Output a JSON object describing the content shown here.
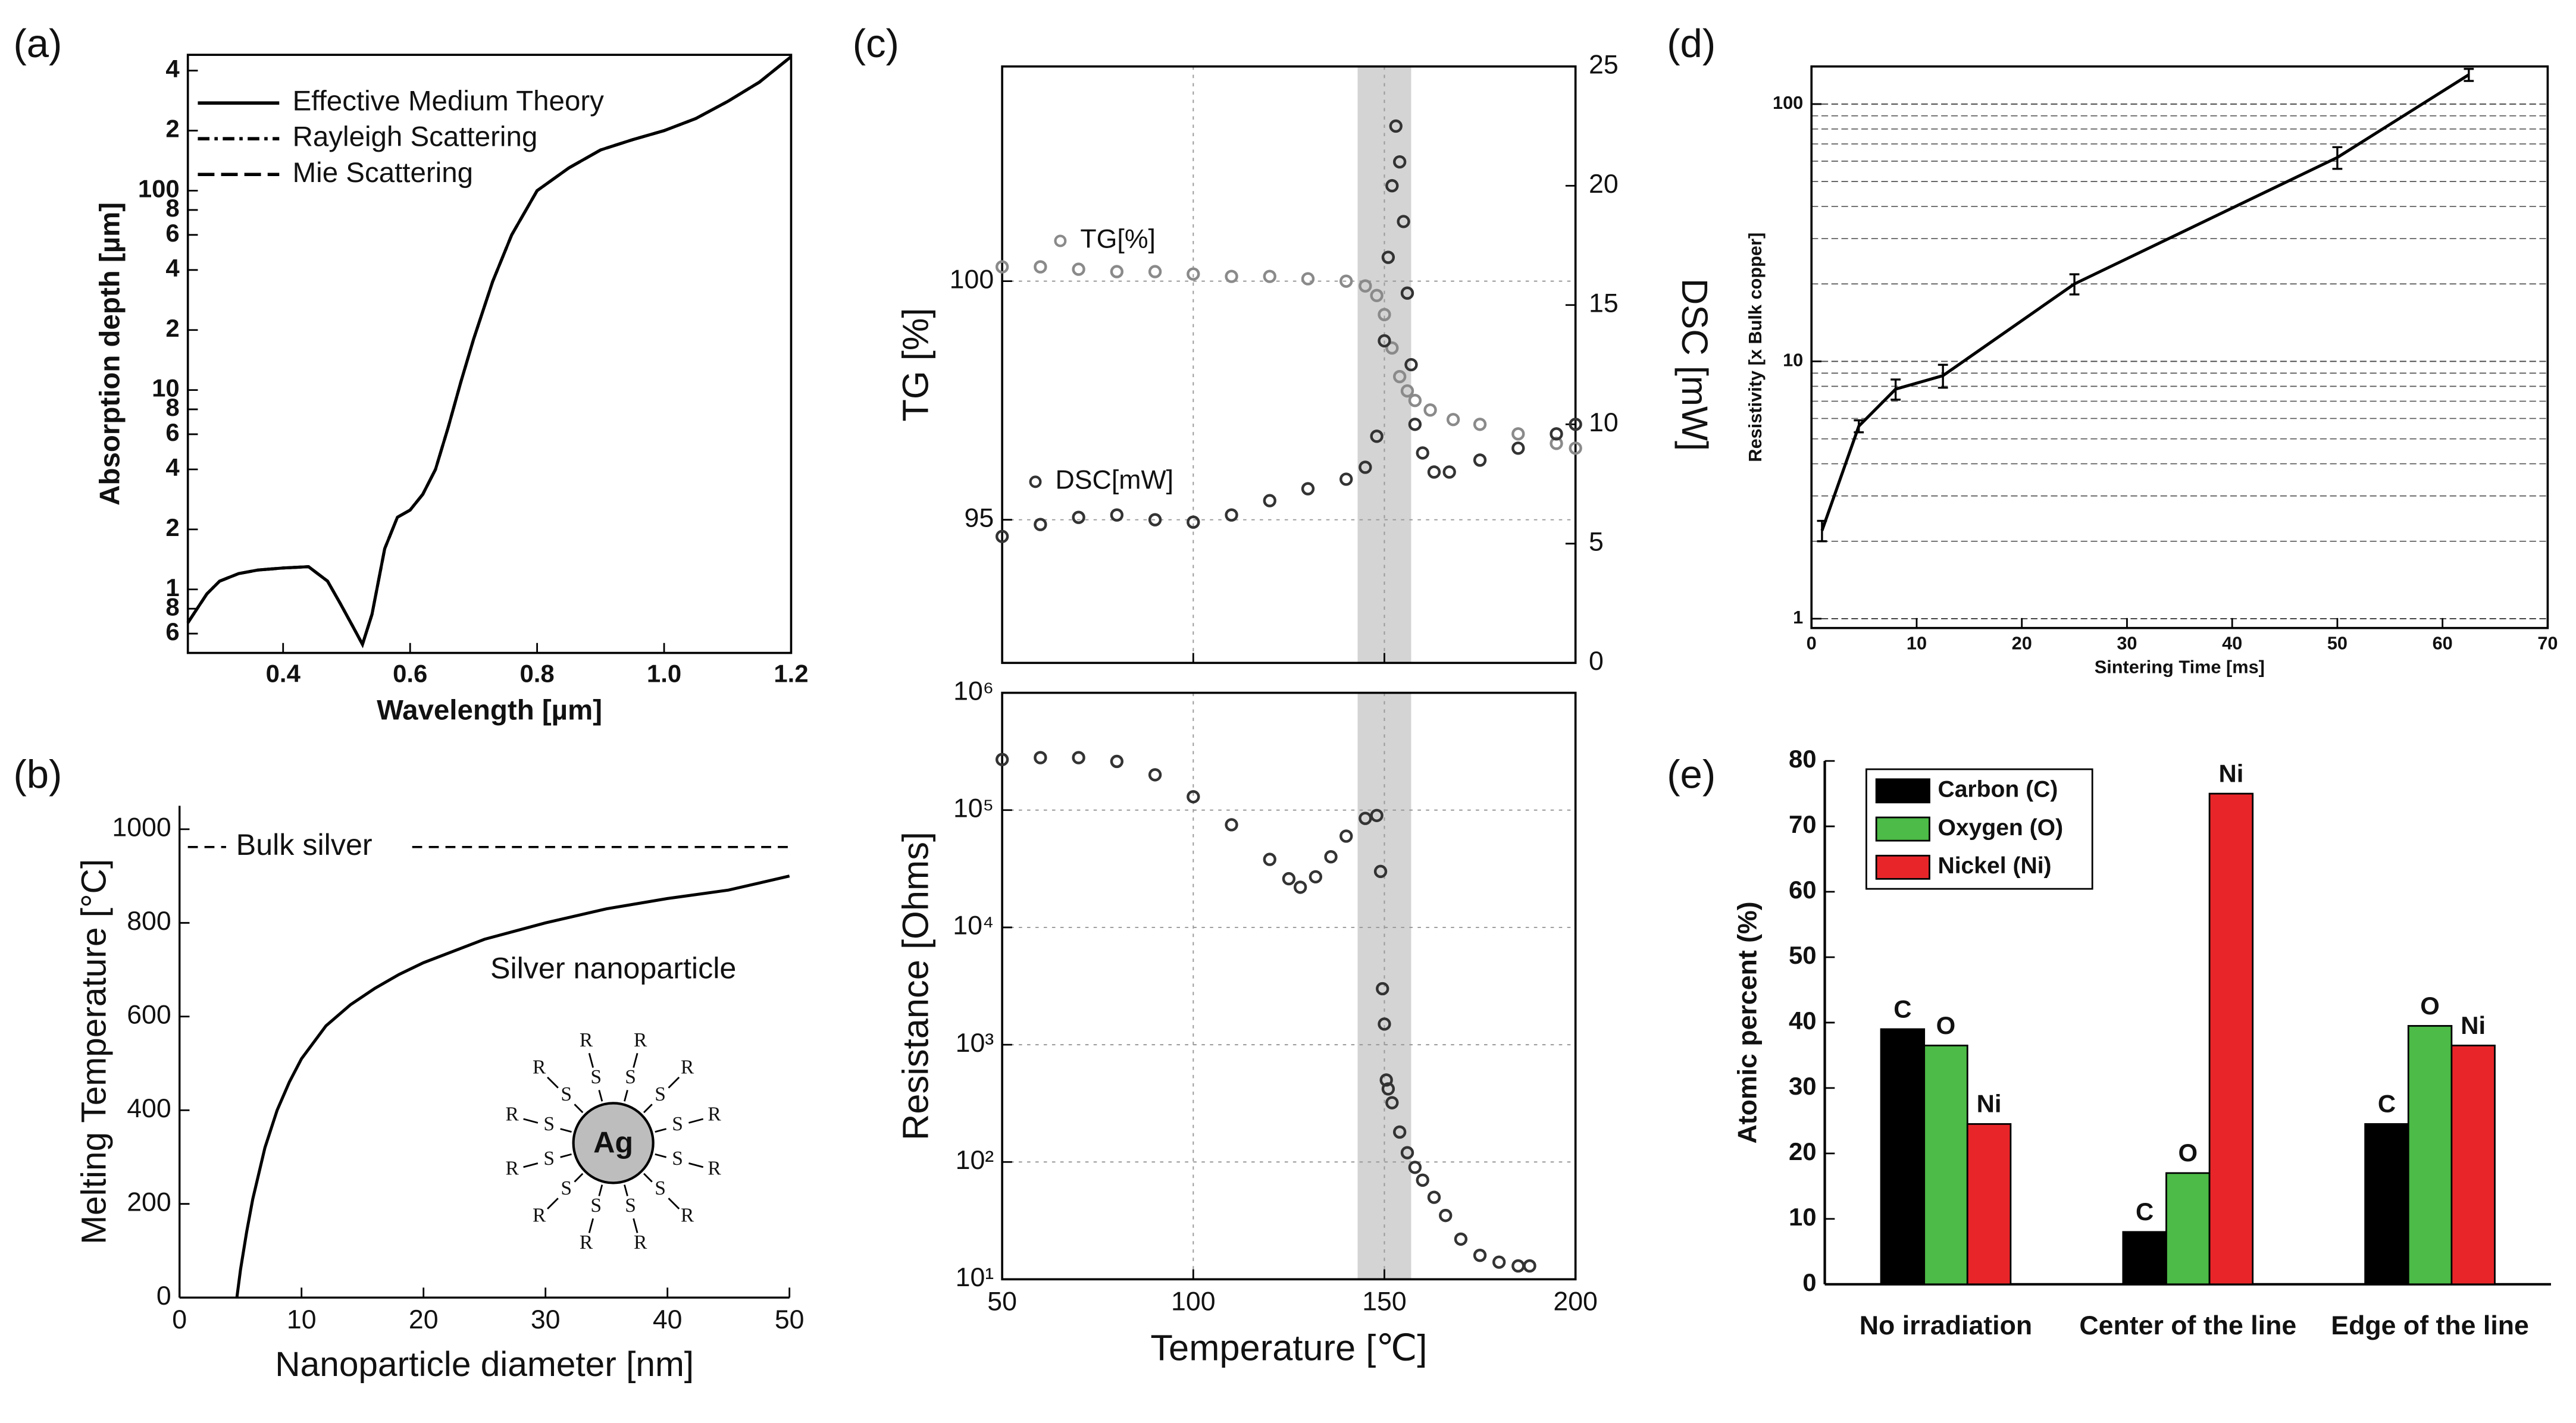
{
  "chart_data": [
    {
      "panel_label": "(a)",
      "type": "line",
      "xlabel": "Wavelength [µm]",
      "ylabel": "Absorption depth [µm]",
      "ylog": true,
      "legend": "upper left",
      "x": [
        0.25,
        0.28,
        0.3,
        0.33,
        0.36,
        0.4,
        0.44,
        0.47,
        0.49,
        0.51,
        0.525,
        0.54,
        0.56,
        0.58,
        0.6,
        0.62,
        0.64,
        0.66,
        0.68,
        0.7,
        0.73,
        0.76,
        0.8,
        0.85,
        0.9,
        0.95,
        1.0,
        1.05,
        1.1,
        1.15,
        1.2
      ],
      "series": [
        {
          "name": "Effective Medium Theory",
          "color": "#000000",
          "linestyle": "solid",
          "values": [
            0.68,
            0.95,
            1.1,
            1.2,
            1.25,
            1.28,
            1.3,
            1.1,
            0.85,
            0.65,
            0.53,
            0.75,
            1.6,
            2.3,
            2.5,
            3.0,
            4.0,
            6.5,
            11,
            18,
            35,
            60,
            100,
            130,
            160,
            180,
            200,
            230,
            280,
            350,
            470
          ]
        },
        {
          "name": "Rayleigh Scattering",
          "color": "#000000",
          "linestyle": "dashdot",
          "values": [
            0.68,
            0.95,
            1.1,
            1.2,
            1.25,
            1.28,
            1.3,
            1.1,
            0.85,
            0.65,
            0.53,
            0.75,
            1.6,
            2.3,
            2.5,
            3.0,
            4.0,
            6.5,
            11,
            18,
            35,
            60,
            100,
            130,
            160,
            180,
            200,
            230,
            280,
            350,
            470
          ]
        },
        {
          "name": "Mie Scattering",
          "color": "#000000",
          "linestyle": "dashed",
          "values": [
            0.68,
            0.95,
            1.1,
            1.2,
            1.25,
            1.28,
            1.3,
            1.1,
            0.85,
            0.65,
            0.53,
            0.75,
            1.6,
            2.3,
            2.5,
            3.0,
            4.0,
            6.5,
            11,
            18,
            35,
            60,
            100,
            130,
            160,
            180,
            200,
            230,
            280,
            350,
            470
          ]
        }
      ],
      "xlim": [
        0.25,
        1.2
      ],
      "xticks": [
        0.4,
        0.6,
        0.8,
        {
          "value": 1,
          "label": "1.0"
        },
        1.2
      ],
      "ylim": [
        0.48,
        480
      ],
      "yticks": [
        {
          "value": 0.6,
          "label": "6"
        },
        {
          "value": 0.8,
          "label": "8"
        },
        1,
        2,
        4,
        6,
        8,
        10,
        {
          "value": 20,
          "label": "2"
        },
        {
          "value": 40,
          "label": "4"
        },
        {
          "value": 60,
          "label": "6"
        },
        {
          "value": 80,
          "label": "8"
        },
        100,
        {
          "value": 200,
          "label": "2"
        },
        {
          "value": 400,
          "label": "4"
        }
      ]
    },
    {
      "panel_label": "(b)",
      "type": "line",
      "xlabel": "Nanoparticle diameter [nm]",
      "ylabel": "Melting Temperature [°C]",
      "color": "#000000",
      "x": [
        4.7,
        5,
        5.5,
        6,
        7,
        8,
        9,
        10,
        12,
        14,
        16,
        18,
        20,
        25,
        30,
        35,
        40,
        45,
        50
      ],
      "values": [
        0,
        60,
        140,
        210,
        320,
        400,
        460,
        510,
        580,
        625,
        660,
        690,
        715,
        765,
        800,
        830,
        852,
        870,
        900
      ],
      "xlim": [
        0,
        50
      ],
      "xticks": [
        0,
        10,
        20,
        30,
        40,
        50
      ],
      "ylim": [
        0,
        1050
      ],
      "yticks": [
        0,
        200,
        400,
        600,
        800,
        1000
      ],
      "reference_line": {
        "label": "Bulk silver",
        "value": 962
      },
      "annotation": "Silver nanoparticle",
      "inset": {
        "core": "Ag",
        "ligand": [
          "S",
          "R"
        ]
      }
    },
    {
      "panel_label": "(c)",
      "type": "scatter",
      "ylabel": "TG [%]",
      "y2label": "DSC [mW]",
      "grid": true,
      "xtick_labels": false,
      "shaded_band": [
        143,
        157
      ],
      "series": [
        {
          "name": "TG[%]",
          "color": "#8a8a8a",
          "x": [
            50,
            60,
            70,
            80,
            90,
            100,
            110,
            120,
            130,
            140,
            145,
            148,
            150,
            152,
            154,
            156,
            158,
            162,
            168,
            175,
            185,
            195,
            200
          ],
          "values": [
            100.3,
            100.3,
            100.25,
            100.2,
            100.2,
            100.15,
            100.1,
            100.1,
            100.05,
            100.0,
            99.9,
            99.7,
            99.3,
            98.6,
            98.0,
            97.7,
            97.5,
            97.3,
            97.1,
            97.0,
            96.8,
            96.6,
            96.5
          ]
        },
        {
          "name": "DSC[mW]",
          "color": "#333333",
          "axis": "y2",
          "x": [
            50,
            60,
            70,
            80,
            90,
            100,
            110,
            120,
            130,
            140,
            145,
            148,
            150,
            151,
            152,
            153,
            154,
            155,
            156,
            157,
            158,
            160,
            163,
            167,
            175,
            185,
            195,
            200
          ],
          "values": [
            5.3,
            5.8,
            6.1,
            6.2,
            6.0,
            5.9,
            6.2,
            6.8,
            7.3,
            7.7,
            8.2,
            9.5,
            13.5,
            17,
            20,
            22.5,
            21,
            18.5,
            15.5,
            12.5,
            10,
            8.8,
            8.0,
            8.0,
            8.5,
            9.0,
            9.6,
            10.0
          ]
        }
      ],
      "xlim": [
        50,
        200
      ],
      "xticks": [
        50,
        100,
        150,
        200
      ],
      "ylim": [
        92,
        104.5
      ],
      "yticks": [
        95,
        100
      ],
      "y2lim": [
        0,
        25
      ],
      "y2ticks": [
        0,
        5,
        10,
        15,
        20,
        25
      ]
    },
    {
      "type": "scatter",
      "xlabel": "Temperature [℃]",
      "ylabel": "Resistance [Ohms]",
      "ylog": true,
      "grid": true,
      "shaded_band": [
        143,
        157
      ],
      "color": "#333333",
      "x": [
        50,
        60,
        70,
        80,
        90,
        100,
        110,
        120,
        125,
        128,
        132,
        136,
        140,
        145,
        148,
        149,
        149.5,
        150,
        150.5,
        151,
        152,
        154,
        156,
        158,
        160,
        163,
        166,
        170,
        175,
        180,
        185,
        188
      ],
      "values": [
        270000,
        280000,
        280000,
        260000,
        200000,
        130000,
        75000,
        38000,
        26000,
        22000,
        27000,
        40000,
        60000,
        85000,
        90000,
        30000,
        3000,
        1500,
        500,
        420,
        320,
        180,
        120,
        90,
        70,
        50,
        35,
        22,
        16,
        14,
        13,
        13
      ],
      "xlim": [
        50,
        200
      ],
      "xticks": [
        50,
        100,
        150,
        200
      ],
      "ylim": [
        10,
        1000000
      ],
      "yticks": [
        {
          "value": 10,
          "label": "10¹"
        },
        {
          "value": 100,
          "label": "10²"
        },
        {
          "value": 1000,
          "label": "10³"
        },
        {
          "value": 10000,
          "label": "10⁴"
        },
        {
          "value": 100000,
          "label": "10⁵"
        },
        {
          "value": 1000000,
          "label": "10⁶"
        }
      ]
    },
    {
      "panel_label": "(d)",
      "type": "line",
      "xlabel": "Sintering Time [ms]",
      "ylabel": "Resistivity [x Bulk copper]",
      "ylog": true,
      "grid": true,
      "color": "#000000",
      "x": [
        1,
        4.5,
        8,
        12.5,
        25,
        50,
        62.5
      ],
      "values": [
        2.2,
        5.6,
        7.8,
        8.8,
        20,
        62,
        130
      ],
      "errors": [
        0.2,
        0.3,
        0.7,
        0.9,
        1.8,
        6,
        7
      ],
      "xlim": [
        0,
        70
      ],
      "xticks": [
        0,
        10,
        20,
        30,
        40,
        50,
        60,
        70
      ],
      "ylim": [
        0.92,
        140
      ],
      "yticks": [
        1,
        10,
        100
      ],
      "yminor_ticks": [
        2,
        3,
        4,
        5,
        6,
        7,
        8,
        9,
        20,
        30,
        40,
        50,
        60,
        70,
        80,
        90
      ]
    },
    {
      "panel_label": "(e)",
      "type": "bar",
      "ylabel": "Atomic percent (%)",
      "legend": "upper left",
      "categories": [
        "No irradiation",
        "Center of the line",
        "Edge of the line"
      ],
      "series": [
        {
          "name": "Carbon (C)",
          "label": "C",
          "color": "#000000",
          "values": [
            39,
            8,
            24.5
          ]
        },
        {
          "name": "Oxygen (O)",
          "label": "O",
          "color": "#4cbb47",
          "values": [
            36.5,
            17,
            39.5
          ]
        },
        {
          "name": "Nickel (Ni)",
          "label": "Ni",
          "color": "#e8262a",
          "values": [
            24.5,
            75,
            36.5
          ]
        }
      ],
      "ylim": [
        0,
        80
      ],
      "yticks": [
        0,
        10,
        20,
        30,
        40,
        50,
        60,
        70,
        80
      ]
    }
  ]
}
